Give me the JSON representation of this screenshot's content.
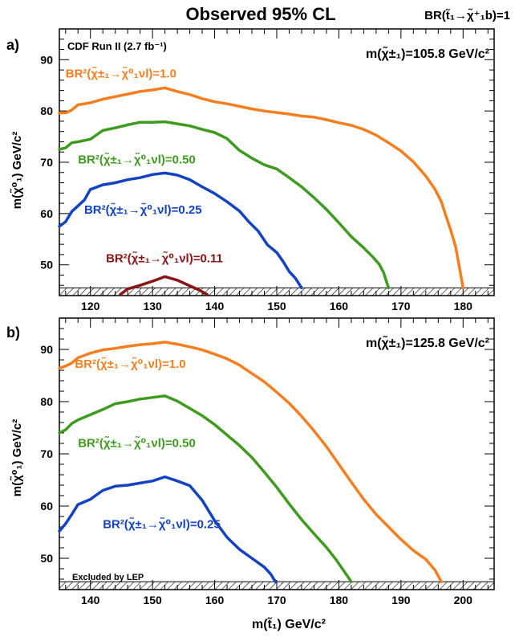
{
  "figure": {
    "title": "Observed 95% CL",
    "br_label": "BR(t̃₁→χ̃⁺₁b)=1",
    "experiment": "CDF Run II (2.7 fb⁻¹)",
    "xlabel": "m(t̃₁) GeV/c²",
    "ylabel": "m(χ̃⁰₁) GeV/c²",
    "lep_label": "Excluded by LEP"
  },
  "colors": {
    "br_1.0": "#f57f20",
    "br_0.50": "#3f9b1f",
    "br_0.25": "#1443c2",
    "br_0.11": "#8b1414",
    "axis": "#000000"
  },
  "chart_data": [
    {
      "type": "line",
      "panel_label": "a)",
      "chargino_mass_label": "m(χ̃±₁)=105.8 GeV/c²",
      "xlim": [
        115,
        185
      ],
      "ylim": [
        44,
        96
      ],
      "xticks": [
        120,
        130,
        140,
        150,
        160,
        170,
        180
      ],
      "yticks": [
        50,
        60,
        70,
        80,
        90
      ],
      "lep_excluded_below": 45.5,
      "series": [
        {
          "name": "BR²(χ̃±₁→χ̃⁰₁νl)=1.0",
          "color_key": "br_1.0",
          "label_at": [
            116,
            86.5
          ],
          "x": [
            115,
            116.2,
            117,
            118,
            120,
            122,
            124,
            126,
            128,
            130,
            132,
            134,
            136,
            138,
            140,
            142,
            144,
            146,
            148,
            150,
            152,
            154,
            156,
            158,
            160,
            162,
            164,
            166,
            168,
            170,
            172,
            174,
            175.5,
            176.5,
            177.2,
            178,
            178.8,
            179.4,
            180
          ],
          "y": [
            79.6,
            79.7,
            80.2,
            81.2,
            81.6,
            82.3,
            82.8,
            83.3,
            83.8,
            84.1,
            84.5,
            83.8,
            83.2,
            82.4,
            81.8,
            81.4,
            80.9,
            80.4,
            80.0,
            79.7,
            79.4,
            79.0,
            78.8,
            78.3,
            77.7,
            77.2,
            76.4,
            75.3,
            73.8,
            72.2,
            70.1,
            67.3,
            64.7,
            62.3,
            59.7,
            56.8,
            53.5,
            49.6,
            45.5
          ]
        },
        {
          "name": "BR²(χ̃±₁→χ̃⁰₁νl)=0.50",
          "color_key": "br_0.50",
          "label_at": [
            118,
            69.8
          ],
          "x": [
            115,
            116,
            117,
            118,
            120,
            122,
            124,
            126,
            128,
            130,
            132,
            134,
            136,
            138,
            140,
            142,
            144,
            146,
            148,
            150,
            152,
            154,
            156,
            158,
            160,
            162,
            164,
            165.5,
            166.5,
            167.2,
            168
          ],
          "y": [
            72.5,
            72.8,
            73.8,
            74.0,
            74.5,
            76.2,
            76.7,
            77.3,
            77.8,
            77.8,
            77.9,
            77.5,
            77.1,
            76.4,
            75.8,
            74.6,
            72.3,
            70.8,
            69.5,
            68.7,
            67.0,
            65.2,
            63.1,
            60.8,
            58.2,
            55.5,
            53.3,
            51.5,
            50.1,
            48.5,
            45.5
          ]
        },
        {
          "name": "BR²(χ̃±₁→χ̃⁰₁νl)=0.25",
          "color_key": "br_0.25",
          "label_at": [
            119,
            60.0
          ],
          "x": [
            115,
            116,
            117,
            118,
            119,
            120,
            122,
            124,
            126,
            128,
            130,
            132,
            134,
            136,
            138,
            140,
            142,
            144,
            145.5,
            147,
            148.5,
            150,
            151,
            152,
            153,
            154
          ],
          "y": [
            57.5,
            58.4,
            60.4,
            61.5,
            62.6,
            64.7,
            65.6,
            66.0,
            66.6,
            67.0,
            67.6,
            67.9,
            67.5,
            66.6,
            65.2,
            63.9,
            62.3,
            60.5,
            58.4,
            56.6,
            53.9,
            52.4,
            50.7,
            48.7,
            47.4,
            45.5
          ]
        },
        {
          "name": "BR²(χ̃±₁→χ̃⁰₁νl)=0.11",
          "color_key": "br_0.11",
          "label_at": [
            122.5,
            50.5
          ],
          "x": [
            124.8,
            126,
            128,
            130,
            132,
            134,
            136,
            137.5,
            138.8
          ],
          "y": [
            44.2,
            45.3,
            46.0,
            46.8,
            47.7,
            47.0,
            45.9,
            45.1,
            44.2
          ]
        }
      ]
    },
    {
      "type": "line",
      "panel_label": "b)",
      "chargino_mass_label": "m(χ̃±₁)=125.8 GeV/c²",
      "xlim": [
        135,
        205
      ],
      "ylim": [
        44,
        96
      ],
      "xticks": [
        140,
        150,
        160,
        170,
        180,
        190,
        200
      ],
      "yticks": [
        50,
        60,
        70,
        80,
        90
      ],
      "lep_excluded_below": 45.5,
      "series": [
        {
          "name": "BR²(χ̃±₁→χ̃⁰₁νl)=1.0",
          "color_key": "br_1.0",
          "label_at": [
            137.5,
            86.5
          ],
          "x": [
            135,
            136,
            137,
            138,
            140,
            142,
            144,
            146,
            148,
            150,
            152,
            154,
            156,
            158,
            160,
            162,
            164,
            166,
            168,
            170,
            172,
            174,
            176,
            178,
            180,
            182,
            184,
            186,
            188,
            190,
            192,
            194,
            195.5,
            196.5
          ],
          "y": [
            86.4,
            86.8,
            87.4,
            88.4,
            89.3,
            89.9,
            90.2,
            90.6,
            90.9,
            91.1,
            91.4,
            91.0,
            90.5,
            89.9,
            89.1,
            88.2,
            87.0,
            85.4,
            83.8,
            81.8,
            79.7,
            77.2,
            74.4,
            71.4,
            68.0,
            64.6,
            61.3,
            58.4,
            56.0,
            53.6,
            51.5,
            49.8,
            47.7,
            45.5
          ]
        },
        {
          "name": "BR²(χ̃±₁→χ̃⁰₁νl)=0.50",
          "color_key": "br_0.50",
          "label_at": [
            138,
            71.3
          ],
          "x": [
            135,
            136,
            137,
            138,
            140,
            142,
            144,
            146,
            148,
            150,
            152,
            154,
            156,
            158,
            160,
            162,
            164,
            166,
            168,
            170,
            172,
            174,
            176,
            178,
            179.5,
            180.5,
            181.2,
            182
          ],
          "y": [
            74.0,
            74.6,
            75.8,
            76.5,
            77.5,
            78.5,
            79.6,
            80.0,
            80.5,
            80.8,
            81.1,
            80.1,
            78.7,
            77.3,
            75.6,
            73.6,
            71.6,
            69.3,
            66.5,
            63.6,
            60.4,
            57.4,
            54.7,
            52.1,
            49.8,
            48.1,
            46.9,
            45.5
          ]
        },
        {
          "name": "BR²(χ̃±₁→χ̃⁰₁νl)=0.25",
          "color_key": "br_0.25",
          "label_at": [
            142,
            55.8
          ],
          "x": [
            135,
            136,
            137,
            138,
            140,
            142,
            144,
            146,
            148,
            150,
            152,
            154,
            156,
            158,
            160,
            162,
            164,
            166,
            168,
            169,
            169.8
          ],
          "y": [
            55.2,
            56.6,
            58.4,
            60.3,
            61.3,
            63.0,
            63.8,
            64.0,
            64.4,
            64.8,
            65.6,
            64.8,
            63.9,
            61.1,
            57.2,
            54.0,
            51.7,
            50.0,
            48.3,
            47.0,
            45.5
          ]
        }
      ]
    }
  ]
}
